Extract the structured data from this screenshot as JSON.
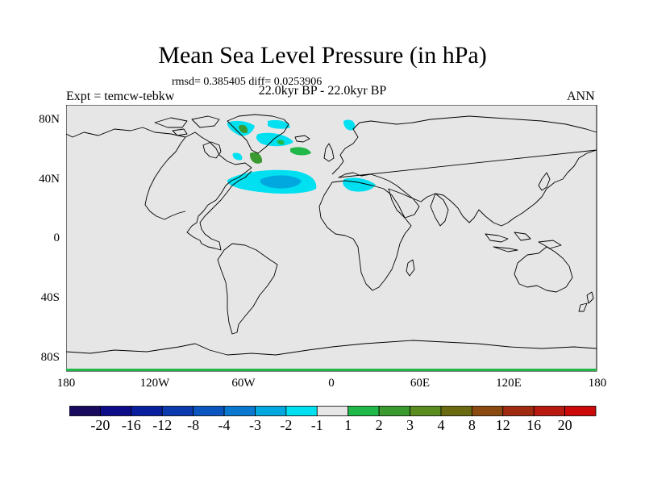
{
  "header": {
    "title": "Mean Sea Level Pressure (in hPa)",
    "stats": "rmsd= 0.385405 diff= 0.0253906",
    "period": "22.0kyr BP - 22.0kyr BP",
    "experiment": "Expt = temcw-tebkw",
    "season": "ANN"
  },
  "axes": {
    "lat_ticks": [
      "80N",
      "40N",
      "0",
      "40S",
      "80S"
    ],
    "lon_ticks": [
      "180",
      "120W",
      "60W",
      "0",
      "60E",
      "120E",
      "180"
    ]
  },
  "colorbar": {
    "labels": [
      "-20",
      "-16",
      "-12",
      "-8",
      "-4",
      "-3",
      "-2",
      "-1",
      "1",
      "2",
      "3",
      "4",
      "8",
      "12",
      "16",
      "20"
    ],
    "colors": [
      "#1a0a5e",
      "#0d0d8a",
      "#0a1f9e",
      "#0a3aad",
      "#0a55bf",
      "#0a78cf",
      "#00a8df",
      "#00e0f0",
      "#e6e6e6",
      "#20b848",
      "#3a9a30",
      "#5a8c20",
      "#6a6a10",
      "#8a4a10",
      "#a02a10",
      "#b81a10",
      "#cc0a0a"
    ]
  },
  "map": {
    "background_color": "#e6e6e6",
    "coast_color": "#000000"
  }
}
